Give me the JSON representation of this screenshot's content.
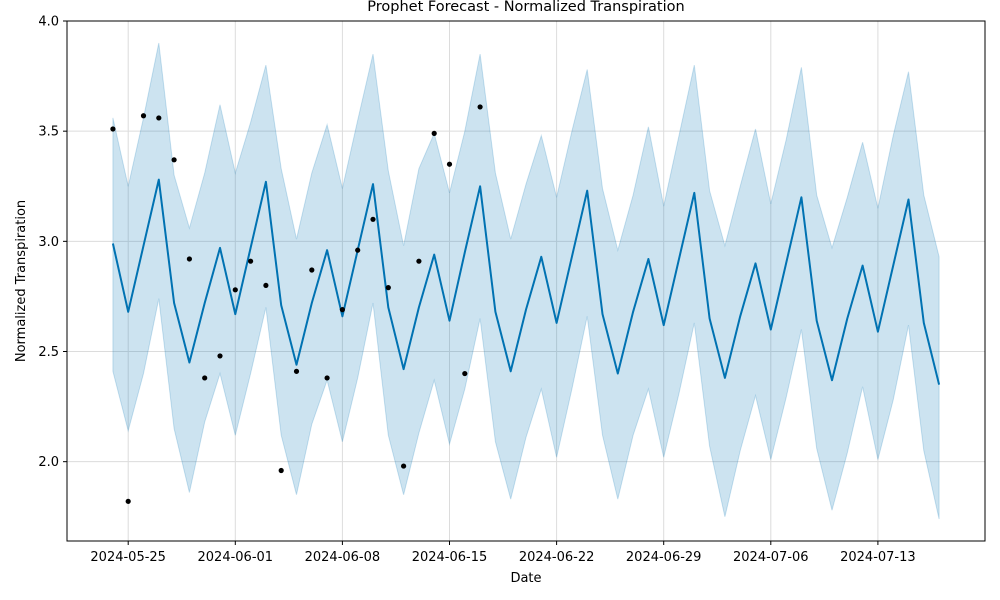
{
  "chart_data": {
    "type": "line",
    "title": "Prophet Forecast - Normalized Transpiration",
    "xlabel": "Date",
    "ylabel": "Normalized Transpiration",
    "x_tick_labels": [
      "2024-05-25",
      "2024-06-01",
      "2024-06-08",
      "2024-06-15",
      "2024-06-22",
      "2024-06-29",
      "2024-07-06",
      "2024-07-13"
    ],
    "y_tick_labels": [
      "2.0",
      "2.5",
      "3.0",
      "3.5",
      "4.0"
    ],
    "xlim": [
      "2024-05-21",
      "2024-07-20"
    ],
    "ylim": [
      1.64,
      4.0
    ],
    "grid": true,
    "colors": {
      "forecast": "#0072b2",
      "interval": "#0072b2",
      "observed": "#000000"
    },
    "observed_points": [
      {
        "x": "2024-05-24",
        "y": 3.51
      },
      {
        "x": "2024-05-25",
        "y": 1.82
      },
      {
        "x": "2024-05-26",
        "y": 3.57
      },
      {
        "x": "2024-05-27",
        "y": 3.56
      },
      {
        "x": "2024-05-28",
        "y": 3.37
      },
      {
        "x": "2024-05-29",
        "y": 2.92
      },
      {
        "x": "2024-05-30",
        "y": 2.38
      },
      {
        "x": "2024-05-31",
        "y": 2.48
      },
      {
        "x": "2024-06-01",
        "y": 2.78
      },
      {
        "x": "2024-06-02",
        "y": 2.91
      },
      {
        "x": "2024-06-03",
        "y": 2.8
      },
      {
        "x": "2024-06-04",
        "y": 1.96
      },
      {
        "x": "2024-06-05",
        "y": 2.41
      },
      {
        "x": "2024-06-06",
        "y": 2.87
      },
      {
        "x": "2024-06-07",
        "y": 2.38
      },
      {
        "x": "2024-06-08",
        "y": 2.69
      },
      {
        "x": "2024-06-09",
        "y": 2.96
      },
      {
        "x": "2024-06-10",
        "y": 3.1
      },
      {
        "x": "2024-06-11",
        "y": 2.79
      },
      {
        "x": "2024-06-12",
        "y": 1.98
      },
      {
        "x": "2024-06-13",
        "y": 2.91
      },
      {
        "x": "2024-06-14",
        "y": 3.49
      },
      {
        "x": "2024-06-15",
        "y": 3.35
      },
      {
        "x": "2024-06-16",
        "y": 2.4
      },
      {
        "x": "2024-06-17",
        "y": 3.61
      }
    ],
    "series": [
      {
        "x": [
          "2024-05-24",
          "2024-05-25",
          "2024-05-26",
          "2024-05-27",
          "2024-05-28",
          "2024-05-29",
          "2024-05-30",
          "2024-05-31",
          "2024-06-01",
          "2024-06-02",
          "2024-06-03",
          "2024-06-04",
          "2024-06-05",
          "2024-06-06",
          "2024-06-07",
          "2024-06-08",
          "2024-06-09",
          "2024-06-10",
          "2024-06-11",
          "2024-06-12",
          "2024-06-13",
          "2024-06-14",
          "2024-06-15",
          "2024-06-16",
          "2024-06-17",
          "2024-06-18",
          "2024-06-19",
          "2024-06-20",
          "2024-06-21",
          "2024-06-22",
          "2024-06-23",
          "2024-06-24",
          "2024-06-25",
          "2024-06-26",
          "2024-06-27",
          "2024-06-28",
          "2024-06-29",
          "2024-06-30",
          "2024-07-01",
          "2024-07-02",
          "2024-07-03",
          "2024-07-04",
          "2024-07-05",
          "2024-07-06",
          "2024-07-07",
          "2024-07-08",
          "2024-07-09",
          "2024-07-10",
          "2024-07-11",
          "2024-07-12",
          "2024-07-13",
          "2024-07-14",
          "2024-07-15",
          "2024-07-16",
          "2024-07-17"
        ],
        "yhat": [
          2.99,
          2.68,
          2.98,
          3.28,
          2.72,
          2.45,
          2.72,
          2.97,
          2.67,
          2.97,
          3.27,
          2.71,
          2.44,
          2.72,
          2.96,
          2.66,
          2.96,
          3.26,
          2.7,
          2.42,
          2.7,
          2.94,
          2.64,
          2.95,
          3.25,
          2.68,
          2.41,
          2.69,
          2.93,
          2.63,
          2.93,
          3.23,
          2.67,
          2.4,
          2.68,
          2.92,
          2.62,
          2.92,
          3.22,
          2.65,
          2.38,
          2.66,
          2.9,
          2.6,
          2.9,
          3.2,
          2.64,
          2.37,
          2.65,
          2.89,
          2.59,
          2.89,
          3.19,
          2.63,
          2.35
        ],
        "yhat_upper": [
          3.56,
          3.25,
          3.56,
          3.9,
          3.3,
          3.06,
          3.31,
          3.62,
          3.31,
          3.54,
          3.8,
          3.33,
          3.01,
          3.31,
          3.53,
          3.24,
          3.55,
          3.85,
          3.32,
          2.98,
          3.33,
          3.49,
          3.22,
          3.5,
          3.85,
          3.31,
          3.01,
          3.26,
          3.48,
          3.2,
          3.5,
          3.78,
          3.24,
          2.96,
          3.21,
          3.52,
          3.16,
          3.48,
          3.8,
          3.23,
          2.98,
          3.25,
          3.51,
          3.17,
          3.46,
          3.79,
          3.21,
          2.97,
          3.2,
          3.45,
          3.15,
          3.48,
          3.77,
          3.21,
          2.93
        ],
        "yhat_lower": [
          2.41,
          2.14,
          2.4,
          2.74,
          2.15,
          1.86,
          2.18,
          2.4,
          2.12,
          2.4,
          2.7,
          2.12,
          1.85,
          2.17,
          2.37,
          2.09,
          2.38,
          2.72,
          2.12,
          1.85,
          2.13,
          2.37,
          2.08,
          2.33,
          2.65,
          2.09,
          1.83,
          2.11,
          2.33,
          2.02,
          2.33,
          2.66,
          2.12,
          1.83,
          2.12,
          2.33,
          2.02,
          2.31,
          2.63,
          2.07,
          1.75,
          2.05,
          2.3,
          2.01,
          2.29,
          2.6,
          2.06,
          1.78,
          2.04,
          2.34,
          2.01,
          2.28,
          2.62,
          2.05,
          1.74
        ]
      }
    ]
  }
}
